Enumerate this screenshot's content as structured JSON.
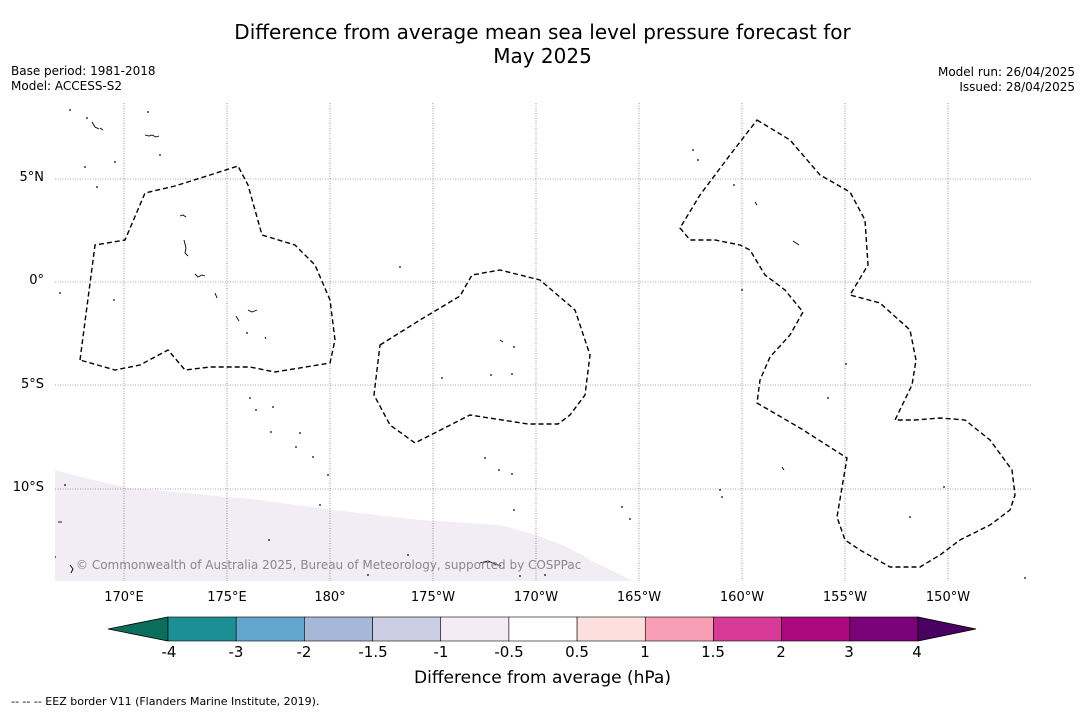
{
  "title_line1": "Difference from average mean sea level pressure forecast for",
  "title_line2": "May 2025",
  "meta_left": {
    "base_period": "Base period: 1981-2018",
    "model": "Model: ACCESS-S2"
  },
  "meta_right": {
    "model_run": "Model run: 26/04/2025",
    "issued": "Issued: 28/04/2025"
  },
  "lat_labels": [
    "5°N",
    "0°",
    "5°S",
    "10°S"
  ],
  "lon_labels": [
    "170°E",
    "175°E",
    "180°",
    "175°W",
    "170°W",
    "165°W",
    "160°W",
    "155°W",
    "150°W"
  ],
  "copyright": "© Commonwealth of Australia 2025, Bureau of Meteorology, supported by COSPPac",
  "colorbar": {
    "label": "Difference from average (hPa)",
    "ticks": [
      "-4",
      "-3",
      "-2",
      "-1.5",
      "-1",
      "-0.5",
      "0.5",
      "1",
      "1.5",
      "2",
      "3",
      "4"
    ],
    "colors": [
      "#1b8f93",
      "#63a6cd",
      "#a5b8d8",
      "#cbcde4",
      "#f3ecf5",
      "#ffffff",
      "#fde0dd",
      "#f89fb6",
      "#d83a97",
      "#aa0a7d",
      "#7a0177"
    ],
    "under_color": "#0b6e5c",
    "over_color": "#4a0060"
  },
  "footer": "--  --  -- EEZ border V11 (Flanders Marine Institute, 2019)."
}
